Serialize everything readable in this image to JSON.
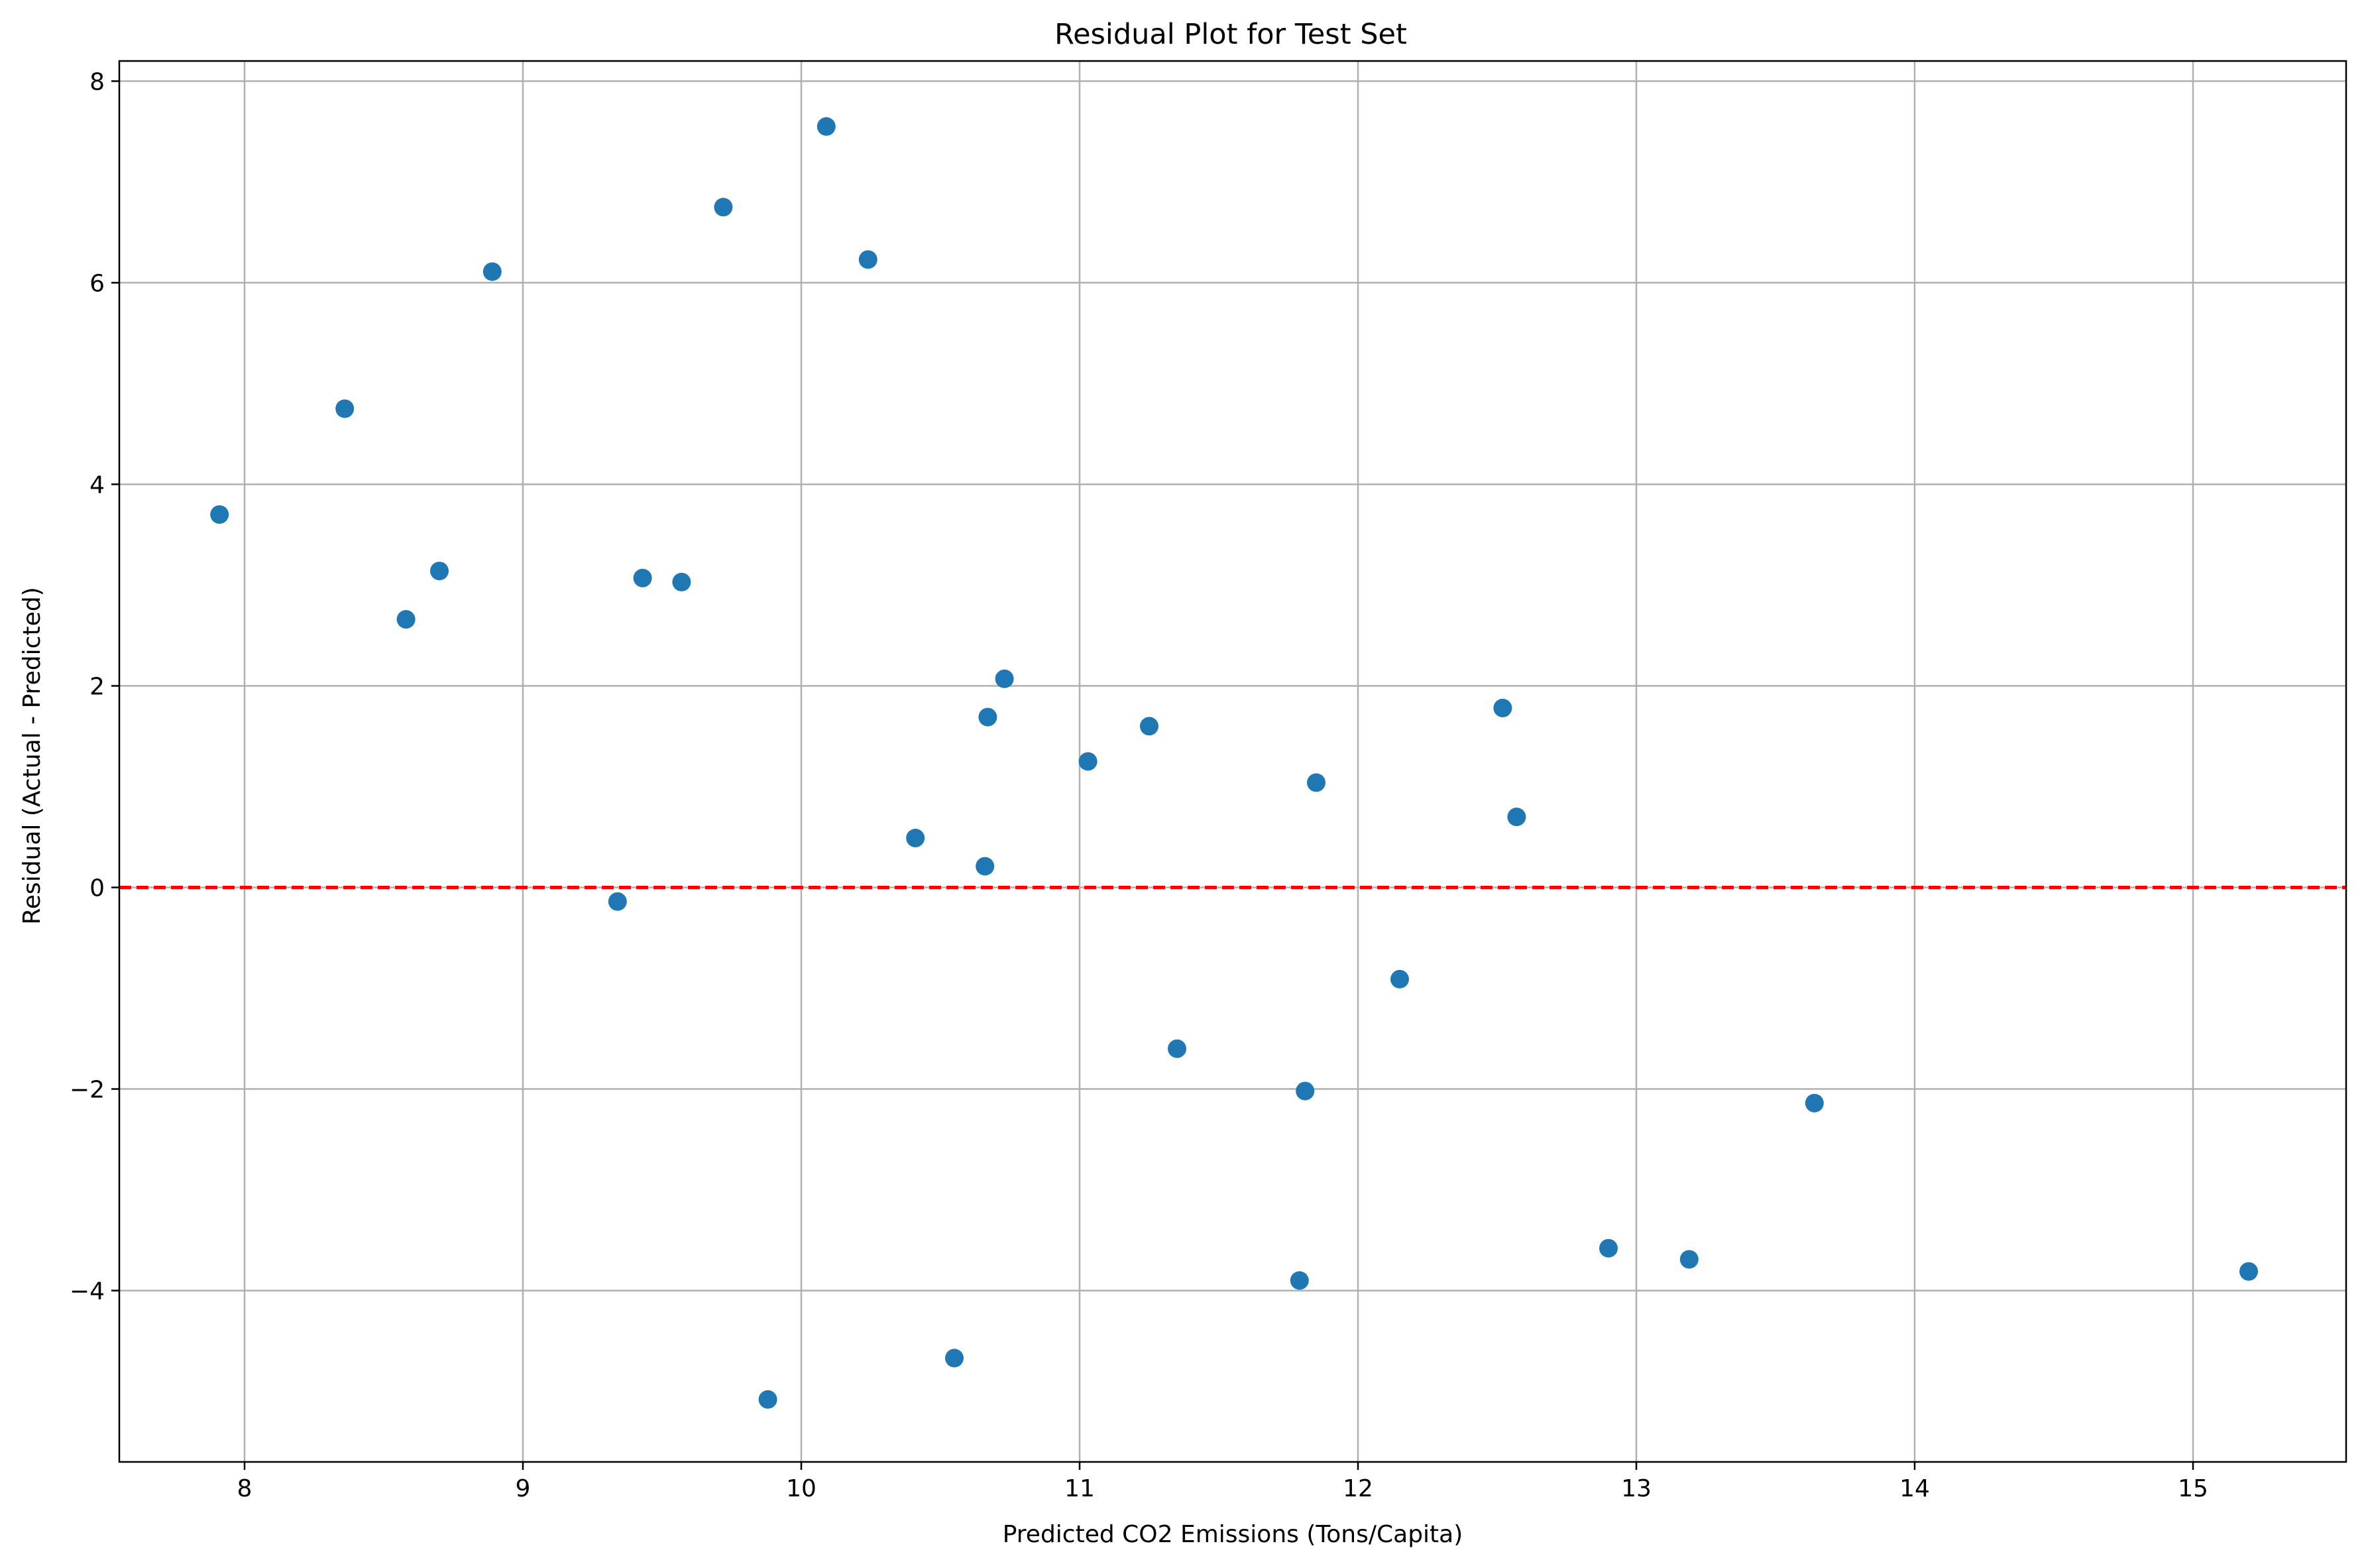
{
  "chart_data": {
    "type": "scatter",
    "title": "Residual Plot for Test Set",
    "xlabel": "Predicted CO2 Emissions (Tons/Capita)",
    "ylabel": "Residual (Actual - Predicted)",
    "xlim": [
      7.55,
      15.55
    ],
    "ylim": [
      -5.7,
      8.2
    ],
    "xticks": [
      8,
      9,
      10,
      11,
      12,
      13,
      14,
      15
    ],
    "yticks": [
      -4,
      -2,
      0,
      2,
      4,
      6,
      8
    ],
    "xtick_labels": [
      "8",
      "9",
      "10",
      "11",
      "12",
      "13",
      "14",
      "15"
    ],
    "ytick_labels": [
      "−4",
      "−2",
      "0",
      "2",
      "4",
      "6",
      "8"
    ],
    "grid": true,
    "marker_color": "#1f77b4",
    "reference_line": {
      "y": 0,
      "color": "#ff0000",
      "style": "dashed"
    },
    "points": [
      {
        "x": 7.91,
        "y": 3.7
      },
      {
        "x": 8.36,
        "y": 4.75
      },
      {
        "x": 8.58,
        "y": 2.66
      },
      {
        "x": 8.7,
        "y": 3.14
      },
      {
        "x": 8.89,
        "y": 6.11
      },
      {
        "x": 9.34,
        "y": -0.14
      },
      {
        "x": 9.43,
        "y": 3.07
      },
      {
        "x": 9.57,
        "y": 3.03
      },
      {
        "x": 9.72,
        "y": 6.75
      },
      {
        "x": 9.88,
        "y": -5.08
      },
      {
        "x": 10.09,
        "y": 7.55
      },
      {
        "x": 10.24,
        "y": 6.23
      },
      {
        "x": 10.41,
        "y": 0.49
      },
      {
        "x": 10.55,
        "y": -4.67
      },
      {
        "x": 10.66,
        "y": 0.21
      },
      {
        "x": 10.67,
        "y": 1.69
      },
      {
        "x": 10.73,
        "y": 2.07
      },
      {
        "x": 11.03,
        "y": 1.25
      },
      {
        "x": 11.25,
        "y": 1.6
      },
      {
        "x": 11.35,
        "y": -1.6
      },
      {
        "x": 11.79,
        "y": -3.9
      },
      {
        "x": 11.81,
        "y": -2.02
      },
      {
        "x": 11.85,
        "y": 1.04
      },
      {
        "x": 12.15,
        "y": -0.91
      },
      {
        "x": 12.52,
        "y": 1.78
      },
      {
        "x": 12.57,
        "y": 0.7
      },
      {
        "x": 12.9,
        "y": -3.58
      },
      {
        "x": 13.19,
        "y": -3.69
      },
      {
        "x": 13.64,
        "y": -2.14
      },
      {
        "x": 15.2,
        "y": -3.81
      }
    ]
  }
}
